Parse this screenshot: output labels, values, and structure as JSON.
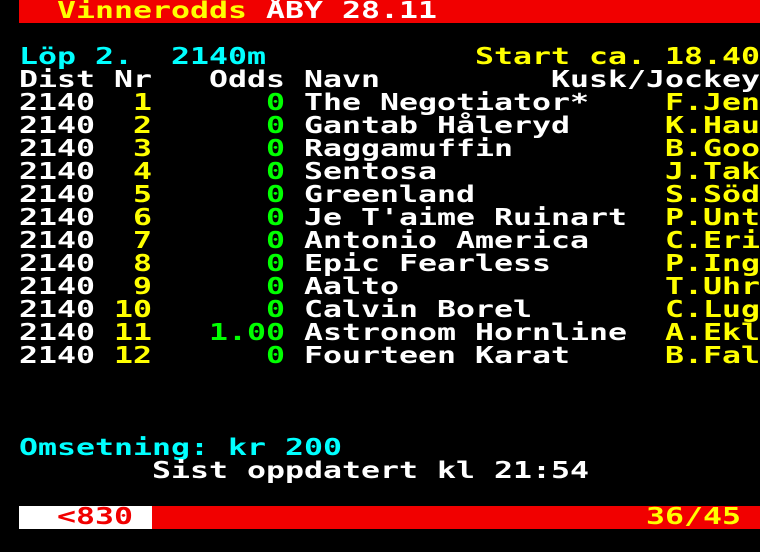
{
  "colors": {
    "red": "#f10000",
    "yellow": "#ffff00",
    "cyan": "#00ffff",
    "green": "#00ff00",
    "white": "#ffffff",
    "black": "#000000"
  },
  "header": {
    "page_title": "Vinnerodds",
    "venue_date": "ÅBY 28.11"
  },
  "race": {
    "race_label": "Löp 2.",
    "distance": "2140m",
    "start_time": "Start ca. 18.40"
  },
  "table": {
    "headers": {
      "dist": "Dist",
      "nr": "Nr",
      "odds": "Odds",
      "name": "Navn",
      "jockey": "Kusk/Jockey"
    },
    "rows": [
      {
        "dist": "2140",
        "nr": "1",
        "odds": "0",
        "name": "The Negotiator*",
        "jockey": "F.Jen"
      },
      {
        "dist": "2140",
        "nr": "2",
        "odds": "0",
        "name": "Gantab Håleryd",
        "jockey": "K.Hau"
      },
      {
        "dist": "2140",
        "nr": "3",
        "odds": "0",
        "name": "Raggamuffin",
        "jockey": "B.Goo"
      },
      {
        "dist": "2140",
        "nr": "4",
        "odds": "0",
        "name": "Sentosa",
        "jockey": "J.Tak"
      },
      {
        "dist": "2140",
        "nr": "5",
        "odds": "0",
        "name": "Greenland",
        "jockey": "S.Söd"
      },
      {
        "dist": "2140",
        "nr": "6",
        "odds": "0",
        "name": "Je T'aime Ruinart",
        "jockey": "P.Unt"
      },
      {
        "dist": "2140",
        "nr": "7",
        "odds": "0",
        "name": "Antonio America",
        "jockey": "C.Eri"
      },
      {
        "dist": "2140",
        "nr": "8",
        "odds": "0",
        "name": "Epic Fearless",
        "jockey": "P.Ing"
      },
      {
        "dist": "2140",
        "nr": "9",
        "odds": "0",
        "name": "Aalto",
        "jockey": "T.Uhr"
      },
      {
        "dist": "2140",
        "nr": "10",
        "odds": "0",
        "name": "Calvin Borel",
        "jockey": "C.Lug"
      },
      {
        "dist": "2140",
        "nr": "11",
        "odds": "1.00",
        "name": "Astronom Hornline",
        "jockey": "A.Ekl"
      },
      {
        "dist": "2140",
        "nr": "12",
        "odds": "0",
        "name": "Fourteen Karat",
        "jockey": "B.Fal"
      }
    ]
  },
  "footer": {
    "turnover_label": "Omsetning:",
    "turnover_value": "kr 200",
    "updated": "Sist oppdatert kl 21:54"
  },
  "status_bar": {
    "page_link": "<830",
    "page_indicator": "36/45"
  }
}
